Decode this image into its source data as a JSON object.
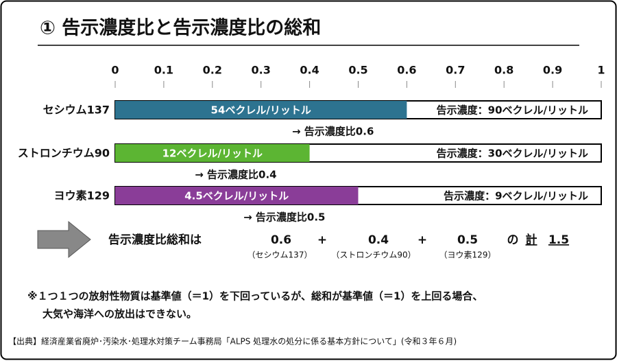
{
  "chart_data": {
    "type": "bar",
    "title": "① 告示濃度比と告示濃度比の総和",
    "categories": [
      "セシウム137",
      "ストロンチウム90",
      "ヨウ素129"
    ],
    "values": [
      0.6,
      0.4,
      0.5
    ],
    "value_labels": [
      "→ 告示濃度比0.6",
      "→ 告示濃度比0.4",
      "→ 告示濃度比0.5"
    ],
    "bar_labels": [
      "54ベクレル/リットル",
      "12ベクレル/リットル",
      "4.5ベクレル/リットル"
    ],
    "limit_labels": [
      "告示濃度：90ベクレル/リットル",
      "告示濃度：30ベクレル/リットル",
      "告示濃度：9ベクレル/リットル"
    ],
    "colors": [
      "#2d7390",
      "#5cb533",
      "#8a3d98"
    ],
    "xlim": [
      0,
      1
    ],
    "xticks": [
      0,
      0.1,
      0.2,
      0.3,
      0.4,
      0.5,
      0.6,
      0.7,
      0.8,
      0.9,
      1
    ]
  },
  "summary": {
    "lead": "告示濃度比総和は",
    "terms": [
      "0.6",
      "+",
      "0.4",
      "+",
      "0.5"
    ],
    "of": "の",
    "total_label": "計",
    "total": "1.5",
    "captions": [
      "（セシウム137）",
      "（ストロンチウム90）",
      "（ヨウ素129）"
    ]
  },
  "note": [
    "※１つ１つの放射性物質は基準値（＝1）を下回っているが、総和が基準値（＝1）を上回る場合、",
    "大気や海洋への放出はできない。"
  ],
  "source": "【出典】経済産業省廃炉･汚染水･処理水対策チーム事務局「ALPS 処理水の処分に係る基本方針について」(令和３年６月)"
}
